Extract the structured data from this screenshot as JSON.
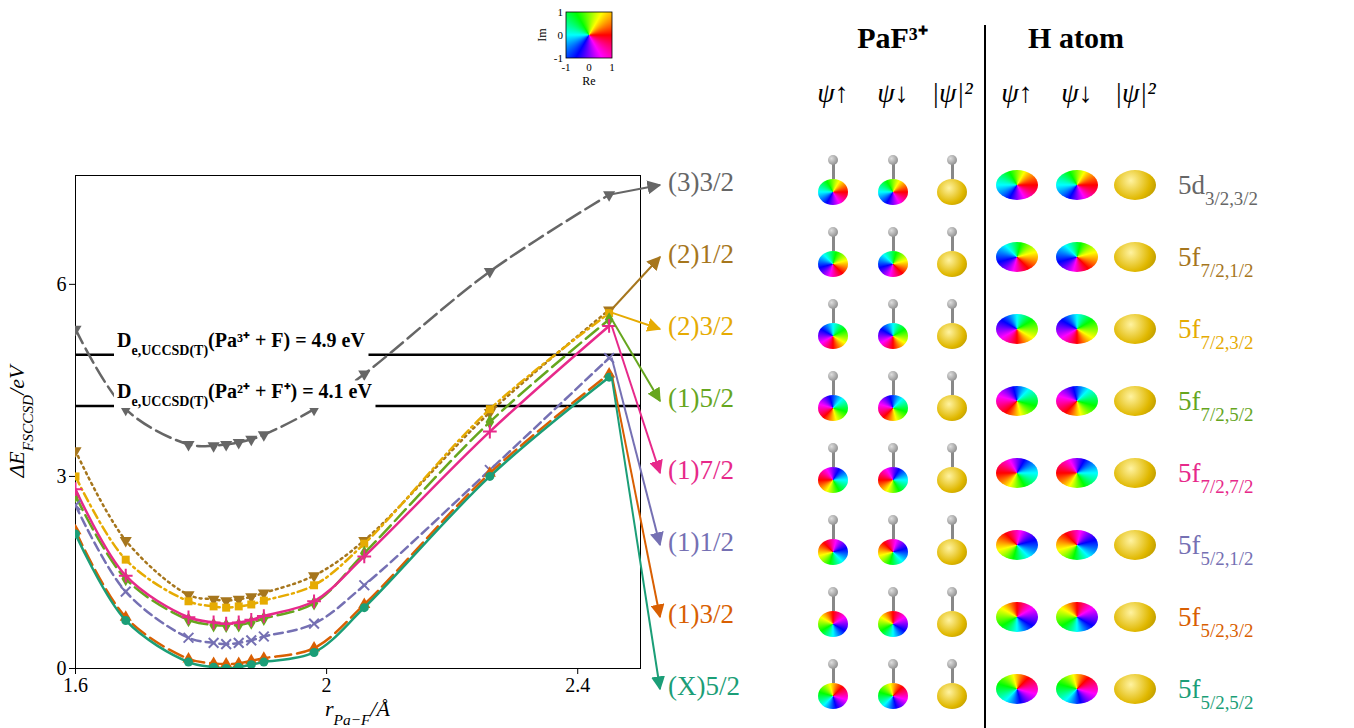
{
  "chart_data": {
    "type": "line",
    "x_label": {
      "text": "r",
      "subscript": "Pa−F",
      "suffix": "/Å"
    },
    "y_label": {
      "text": "ΔE",
      "subscript": "FSCCSD",
      "suffix": "/eV"
    },
    "x": [
      1.6,
      1.68,
      1.78,
      1.82,
      1.84,
      1.86,
      1.88,
      1.9,
      1.98,
      2.06,
      2.26,
      2.45
    ],
    "xlim": [
      1.6,
      2.5
    ],
    "xticks": [
      1.6,
      2,
      2.4
    ],
    "ylim": [
      0,
      7.7
    ],
    "yticks": [
      0,
      3,
      6
    ],
    "reference_lines": [
      {
        "value": 4.9,
        "text": "D",
        "subscript": "e,UCCSD(T)",
        "suffix": "(Pa³⁺ + F) = 4.9 eV"
      },
      {
        "value": 4.1,
        "text": "D",
        "subscript": "e,UCCSD(T)",
        "suffix": "(Pa²⁺ + F⁺) = 4.1 eV"
      }
    ],
    "series": [
      {
        "name": "(3)3/2",
        "color": "#666666",
        "marker": "triangle-down",
        "line_style": "longdash",
        "orbital": "5d",
        "orbital_subscript": "3/2,3/2",
        "values": [
          5.3,
          4.05,
          3.5,
          3.48,
          3.5,
          3.53,
          3.58,
          3.65,
          4.05,
          4.6,
          6.2,
          7.4
        ]
      },
      {
        "name": "(2)1/2",
        "color": "#a6761d",
        "marker": "triangle-down",
        "line_style": "dotted",
        "orbital": "5f",
        "orbital_subscript": "7/2,1/2",
        "values": [
          3.4,
          2.0,
          1.15,
          1.08,
          1.06,
          1.08,
          1.12,
          1.18,
          1.45,
          2.0,
          4.0,
          5.6
        ]
      },
      {
        "name": "(2)3/2",
        "color": "#e6ab02",
        "marker": "square",
        "line_style": "dashdot",
        "orbital": "5f",
        "orbital_subscript": "7/2,3/2",
        "values": [
          3.0,
          1.7,
          1.05,
          0.97,
          0.95,
          0.97,
          1.0,
          1.06,
          1.3,
          1.95,
          4.05,
          5.55
        ]
      },
      {
        "name": "(1)5/2",
        "color": "#66a61e",
        "marker": "diamond",
        "line_style": "longdash",
        "orbital": "5f",
        "orbital_subscript": "7/2,5/2",
        "values": [
          2.7,
          1.4,
          0.76,
          0.68,
          0.67,
          0.68,
          0.72,
          0.78,
          1.02,
          1.8,
          3.85,
          5.45
        ]
      },
      {
        "name": "(1)7/2",
        "color": "#e7298a",
        "marker": "plus",
        "line_style": "solid",
        "orbital": "5f",
        "orbital_subscript": "7/2,7/2",
        "values": [
          2.8,
          1.45,
          0.8,
          0.72,
          0.7,
          0.72,
          0.76,
          0.82,
          1.05,
          1.75,
          3.7,
          5.35
        ]
      },
      {
        "name": "(1)1/2",
        "color": "#7570b3",
        "marker": "times",
        "line_style": "dashed",
        "orbital": "5f",
        "orbital_subscript": "5/2,1/2",
        "values": [
          2.55,
          1.2,
          0.48,
          0.4,
          0.38,
          0.4,
          0.44,
          0.5,
          0.7,
          1.3,
          3.1,
          4.85
        ]
      },
      {
        "name": "(1)3/2",
        "color": "#d95f02",
        "marker": "triangle",
        "line_style": "longdash",
        "orbital": "5f",
        "orbital_subscript": "5/2,3/2",
        "values": [
          2.15,
          0.8,
          0.15,
          0.08,
          0.07,
          0.08,
          0.12,
          0.16,
          0.32,
          1.0,
          3.05,
          4.6
        ]
      },
      {
        "name": "(X)5/2",
        "color": "#1b9e77",
        "marker": "circle",
        "line_style": "solid",
        "orbital": "5f",
        "orbital_subscript": "5/2,5/2",
        "values": [
          2.1,
          0.75,
          0.1,
          0.02,
          0.0,
          0.02,
          0.06,
          0.1,
          0.25,
          0.95,
          3.0,
          4.55
        ]
      }
    ]
  },
  "orbital_panel": {
    "groups": [
      "PaF³⁺",
      "H atom"
    ],
    "columns": [
      "ψ↑",
      "ψ↓",
      "|ψ|²"
    ]
  },
  "phase_legend": {
    "x_label": "Re",
    "y_label": "Im",
    "xticks": [
      -1,
      0,
      1
    ],
    "yticks": [
      1,
      0,
      -1
    ]
  }
}
